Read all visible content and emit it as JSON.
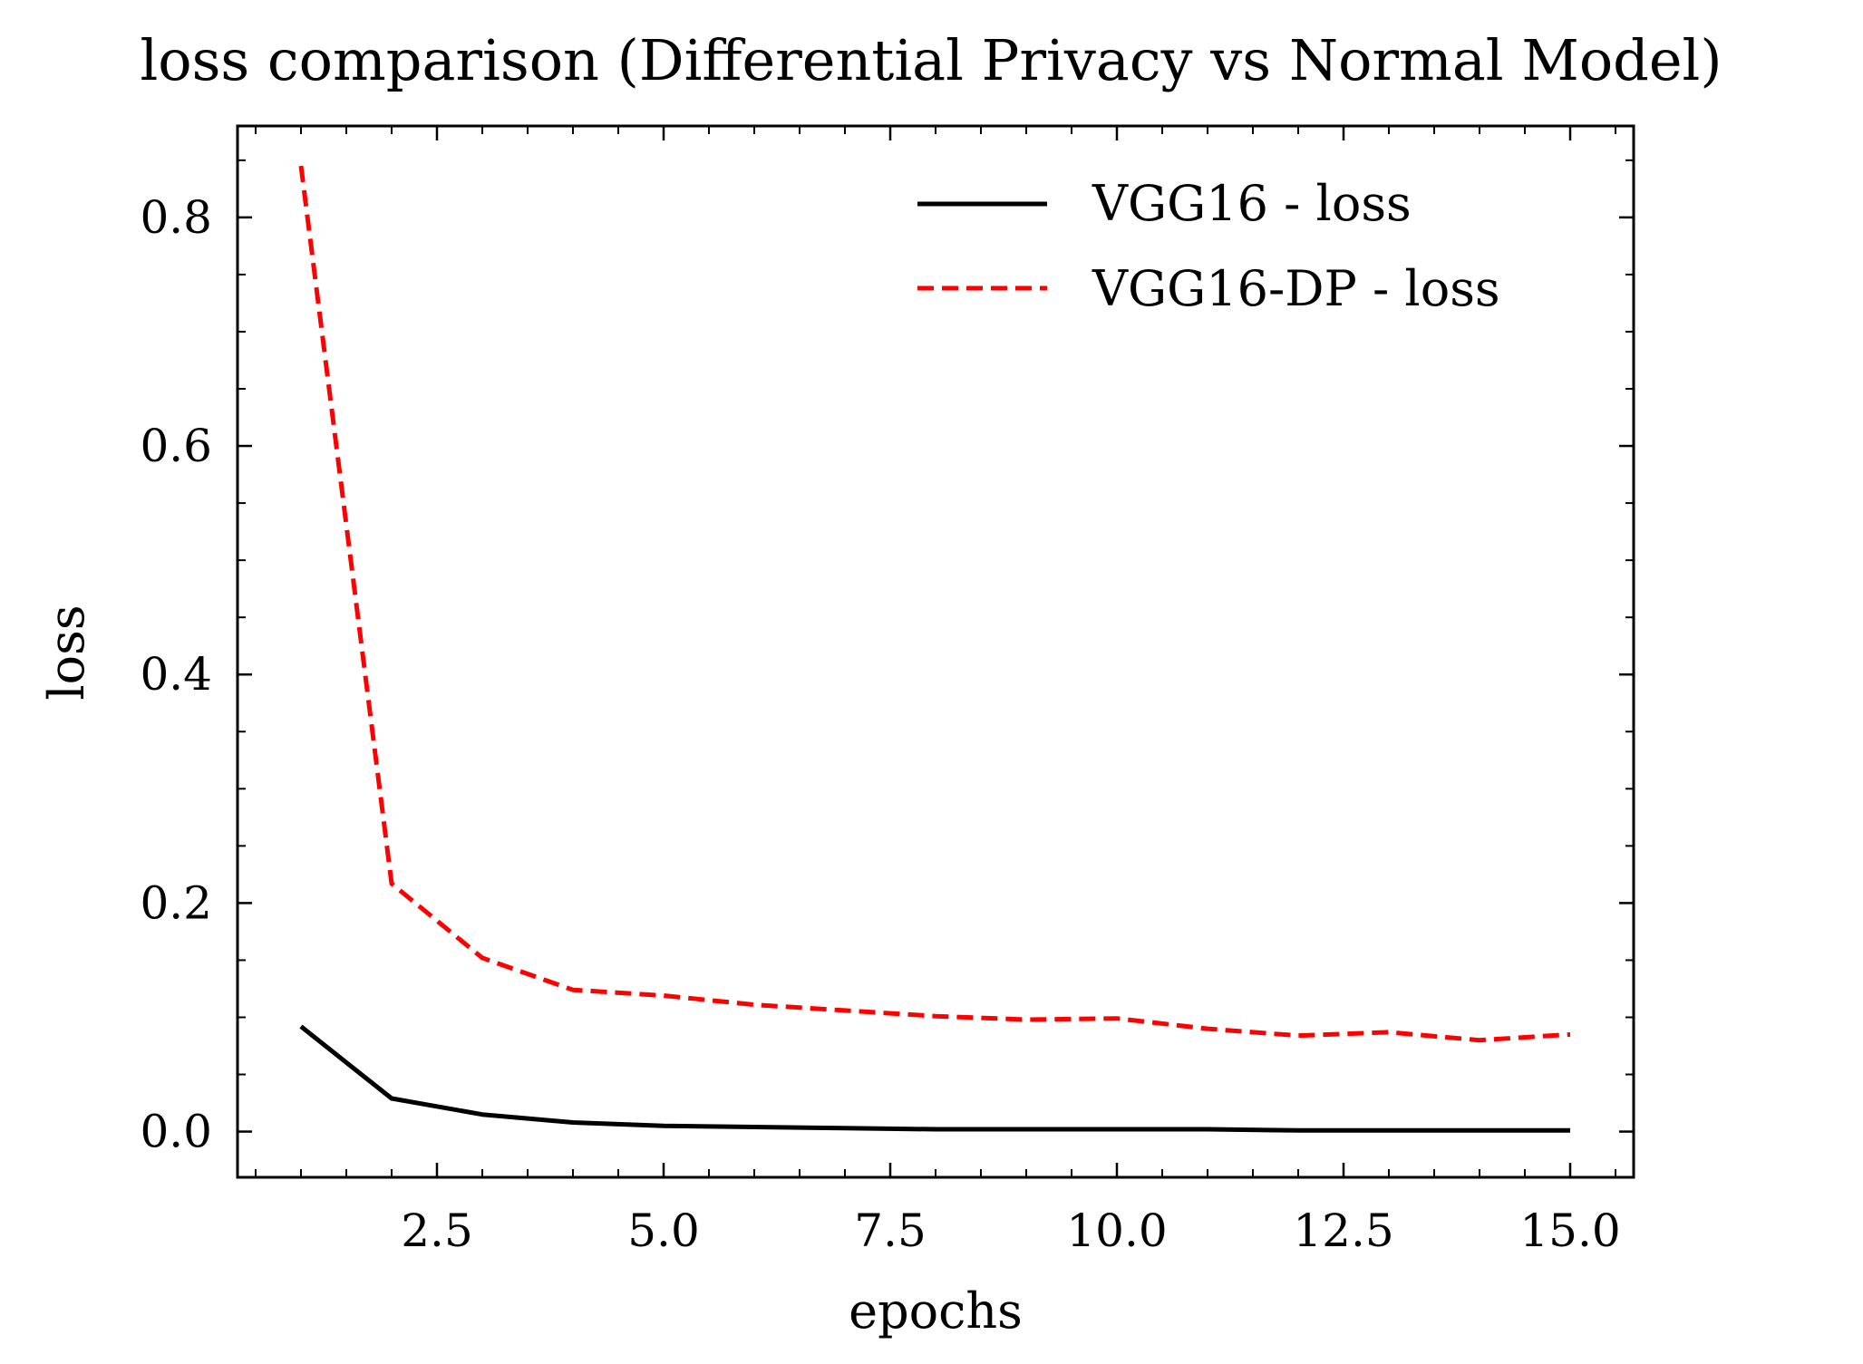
{
  "chart_data": {
    "type": "line",
    "title": "loss comparison (Differential Privacy vs Normal Model)",
    "xlabel": "epochs",
    "ylabel": "loss",
    "xlim": [
      0.3,
      15.7
    ],
    "ylim": [
      -0.04,
      0.88
    ],
    "x_ticks": [
      2.5,
      5.0,
      7.5,
      10.0,
      12.5,
      15.0
    ],
    "x_tick_labels": [
      "2.5",
      "5.0",
      "7.5",
      "10.0",
      "12.5",
      "15.0"
    ],
    "y_ticks": [
      0.0,
      0.2,
      0.4,
      0.6,
      0.8
    ],
    "y_tick_labels": [
      "0.0",
      "0.2",
      "0.4",
      "0.6",
      "0.8"
    ],
    "x_minor_step": 0.5,
    "y_minor_step": 0.05,
    "grid": false,
    "legend_position": "top-right",
    "x": [
      1,
      2,
      3,
      4,
      5,
      6,
      7,
      8,
      9,
      10,
      11,
      12,
      13,
      14,
      15
    ],
    "series": [
      {
        "name": "VGG16 - loss",
        "color": "#000000",
        "style": "solid",
        "values": [
          0.092,
          0.029,
          0.015,
          0.008,
          0.005,
          0.004,
          0.003,
          0.002,
          0.002,
          0.002,
          0.002,
          0.001,
          0.001,
          0.001,
          0.001
        ]
      },
      {
        "name": "VGG16-DP - loss",
        "color": "#ff0000",
        "style": "dashed",
        "values": [
          0.845,
          0.217,
          0.152,
          0.124,
          0.119,
          0.111,
          0.106,
          0.101,
          0.098,
          0.099,
          0.09,
          0.084,
          0.087,
          0.08,
          0.085
        ]
      }
    ]
  }
}
